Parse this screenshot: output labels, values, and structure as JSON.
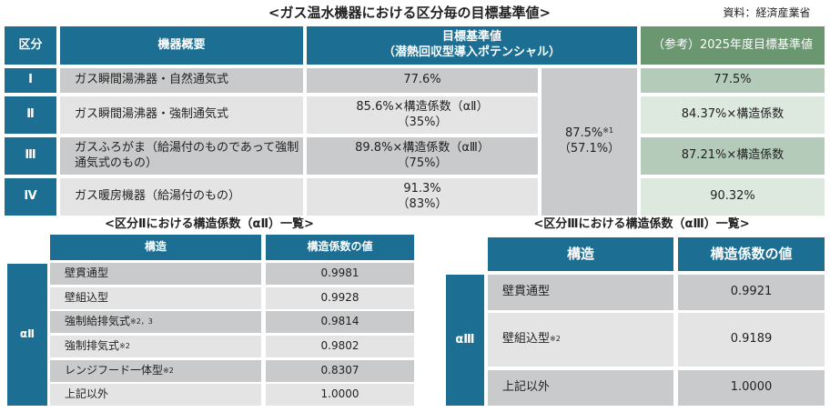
{
  "title": "<ガス温水機器における区分毎の目標基準値>",
  "source": "資料：経済産業省",
  "main_table": {
    "headers": {
      "category": "区分",
      "overview": "機器概要",
      "target": "目標基準値",
      "target_sub": "（潜熱回収型導入ポテンシャル）",
      "ref": "（参考）2025年度目標基準値"
    },
    "rows": [
      {
        "cat": "Ⅰ",
        "overview": "ガス瞬間湯沸器・自然通気式",
        "target": "77.6%",
        "target_sub": "",
        "ref": "77.5%"
      },
      {
        "cat": "Ⅱ",
        "overview": "ガス瞬間湯沸器・強制通気式",
        "target": "85.6%×構造係数（αⅡ）",
        "target_sub": "（35%）",
        "ref": "84.37%×構造係数"
      },
      {
        "cat": "Ⅲ",
        "overview": "ガスふろがま（給湯付のものであって強制通気式のもの）",
        "target": "89.8%×構造係数（αⅢ）",
        "target_sub": "（75%）",
        "ref": "87.21%×構造係数"
      },
      {
        "cat": "Ⅳ",
        "overview": "ガス暖房機器（給湯付のもの）",
        "target": "91.3%",
        "target_sub": "（83%）",
        "ref": "90.32%"
      }
    ],
    "merged": {
      "value": "87.5%",
      "note": "※1",
      "sub": "（57.1%）"
    }
  },
  "table2": {
    "title": "<区分Ⅱにおける構造係数（αⅡ）一覧>",
    "h1": "構造",
    "h2": "構造係数の値",
    "label": "αⅡ",
    "rows": [
      {
        "s": "壁貫通型",
        "n": "",
        "v": "0.9981"
      },
      {
        "s": "壁組込型",
        "n": "",
        "v": "0.9928"
      },
      {
        "s": "強制給排気式",
        "n": "※2，3",
        "v": "0.9814"
      },
      {
        "s": "強制排気式",
        "n": "※2",
        "v": "0.9802"
      },
      {
        "s": "レンジフード一体型",
        "n": "※2",
        "v": "0.8307"
      },
      {
        "s": "上記以外",
        "n": "",
        "v": "1.0000"
      }
    ]
  },
  "table3": {
    "title": "<区分Ⅲにおける構造係数（αⅢ）一覧>",
    "h1": "構造",
    "h2": "構造係数の値",
    "label": "αⅢ",
    "rows": [
      {
        "s": "壁貫通型",
        "n": "",
        "v": "0.9921"
      },
      {
        "s": "壁組込型",
        "n": "※2",
        "v": "0.9189"
      },
      {
        "s": "上記以外",
        "n": "",
        "v": "1.0000"
      }
    ]
  }
}
